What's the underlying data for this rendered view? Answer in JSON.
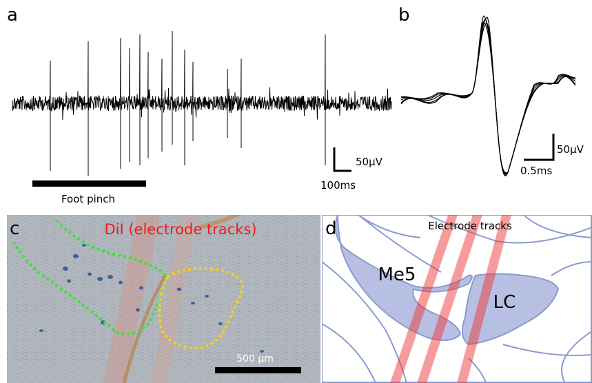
{
  "panels": {
    "a": {
      "label": "a",
      "scale_y": "50µV",
      "scale_x": "100ms",
      "stimulus": "Foot pinch"
    },
    "b": {
      "label": "b",
      "scale_y": "50µV",
      "scale_x": "0.5ms"
    },
    "c": {
      "label": "c",
      "title": "DiI (electrode tracks)",
      "scale": "500 µm"
    },
    "d": {
      "label": "d",
      "title": "Electrode tracks",
      "region_1": "Me5",
      "region_2": "LC"
    }
  }
}
